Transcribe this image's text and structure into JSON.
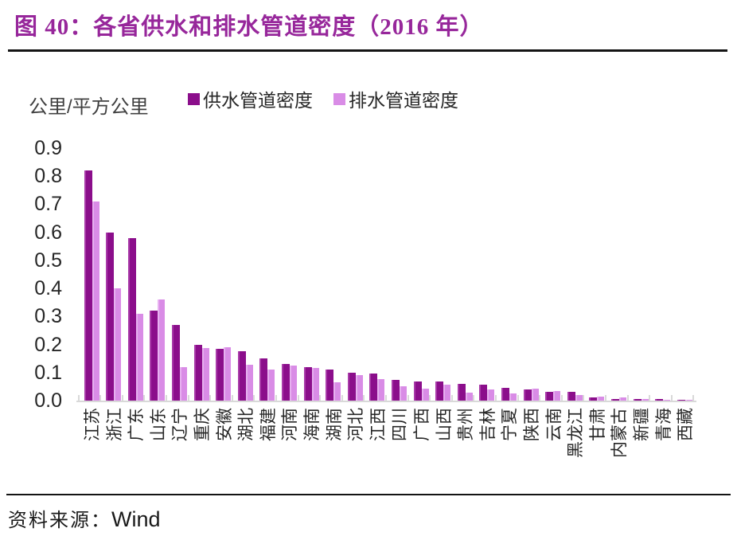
{
  "title": {
    "text": "图 40：各省供水和排水管道密度（2016 年）"
  },
  "legend": {
    "supply_label": "供水管道密度",
    "drain_label": "排水管道密度"
  },
  "y_axis": {
    "unit": "公里/平方公里",
    "ticks": [
      "0.9",
      "0.8",
      "0.7",
      "0.6",
      "0.5",
      "0.4",
      "0.3",
      "0.2",
      "0.1",
      "0.0"
    ]
  },
  "source": {
    "prefix": "资料来源：",
    "name": "Wind"
  },
  "colors": {
    "title": "#97279b",
    "supply": "#8b0e8b",
    "drain": "#d98ce6",
    "axis": "#d9d9d9",
    "text": "#262626"
  },
  "chart_data": {
    "type": "bar",
    "title": "各省供水和排水管道密度（2016 年）",
    "xlabel": "",
    "ylabel": "公里/平方公里",
    "ylim": [
      0,
      0.9
    ],
    "grid": false,
    "legend_position": "top",
    "categories": [
      "江苏",
      "浙江",
      "广东",
      "山东",
      "辽宁",
      "重庆",
      "安徽",
      "湖北",
      "福建",
      "河南",
      "海南",
      "湖南",
      "河北",
      "江西",
      "四川",
      "广西",
      "山西",
      "贵州",
      "吉林",
      "宁夏",
      "陕西",
      "云南",
      "黑龙江",
      "甘肃",
      "内蒙古",
      "新疆",
      "青海",
      "西藏"
    ],
    "series": [
      {
        "name": "供水管道密度",
        "color": "#8b0e8b",
        "values": [
          0.82,
          0.6,
          0.58,
          0.32,
          0.27,
          0.2,
          0.185,
          0.175,
          0.15,
          0.13,
          0.12,
          0.11,
          0.1,
          0.096,
          0.075,
          0.067,
          0.067,
          0.06,
          0.058,
          0.045,
          0.04,
          0.032,
          0.03,
          0.01,
          0.007,
          0.007,
          0.005,
          0.002
        ]
      },
      {
        "name": "排水管道密度",
        "color": "#d98ce6",
        "values": [
          0.71,
          0.4,
          0.31,
          0.36,
          0.12,
          0.187,
          0.19,
          0.127,
          0.11,
          0.124,
          0.117,
          0.065,
          0.09,
          0.077,
          0.05,
          0.042,
          0.058,
          0.029,
          0.04,
          0.026,
          0.043,
          0.034,
          0.02,
          0.013,
          0.011,
          0.005,
          0.004,
          0.002
        ]
      }
    ]
  }
}
